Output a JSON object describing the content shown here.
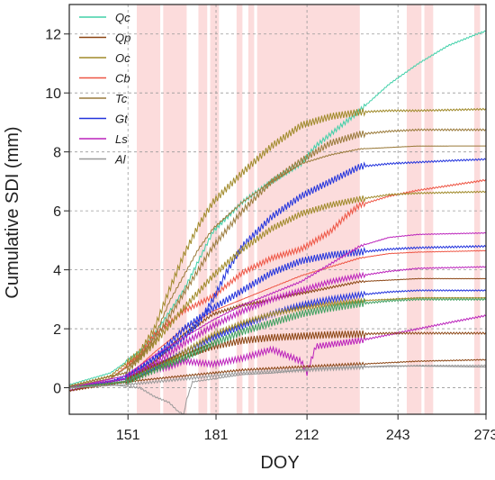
{
  "chart_data": {
    "type": "line",
    "xlabel": "DOY",
    "ylabel": "Cumulative SDI (mm)",
    "xlim": [
      131,
      273
    ],
    "ylim": [
      -0.9,
      13
    ],
    "xticks": [
      151,
      181,
      212,
      243,
      273
    ],
    "yticks": [
      0,
      2,
      4,
      6,
      8,
      10,
      12
    ],
    "grid": "dashed, on both axes",
    "legend_position": "top-left",
    "shaded_periods": [
      [
        154,
        162
      ],
      [
        163,
        171
      ],
      [
        175,
        178
      ],
      [
        179,
        182
      ],
      [
        188,
        190
      ],
      [
        192,
        194
      ],
      [
        195,
        230
      ],
      [
        246,
        251
      ],
      [
        252,
        255
      ],
      [
        269,
        271
      ]
    ],
    "series": [
      {
        "name": "Qc",
        "color": "#40d0a8",
        "x": [
          131,
          145,
          155,
          160,
          170,
          180,
          190,
          200,
          210,
          215,
          220,
          225,
          230,
          240,
          250,
          260,
          270,
          273
        ],
        "y": [
          0.1,
          0.5,
          1.2,
          1.8,
          3.3,
          5.3,
          6.3,
          7.0,
          7.6,
          8.2,
          8.6,
          9.0,
          9.4,
          10.3,
          11.0,
          11.6,
          12.0,
          12.1
        ]
      },
      {
        "name": "Qp",
        "color": "#8b4513",
        "x": [
          131,
          150,
          160,
          170,
          180,
          190,
          200,
          210,
          215,
          225,
          230,
          240,
          250,
          273
        ],
        "y": [
          -0.1,
          0.3,
          0.9,
          1.8,
          2.5,
          2.8,
          3.0,
          3.2,
          3.3,
          3.5,
          3.6,
          3.65,
          3.7,
          3.7
        ]
      },
      {
        "name": "Oc",
        "color": "#a08a2a",
        "x": [
          131,
          145,
          155,
          160,
          165,
          170,
          175,
          180,
          190,
          200,
          210,
          220,
          230,
          240,
          250,
          273
        ],
        "y": [
          0.05,
          0.4,
          1.2,
          2.0,
          3.3,
          4.5,
          5.5,
          6.3,
          7.3,
          8.2,
          8.9,
          9.2,
          9.35,
          9.4,
          9.4,
          9.45
        ]
      },
      {
        "name": "Cb",
        "color": "#ee5544",
        "x": [
          131,
          145,
          155,
          160,
          170,
          180,
          190,
          200,
          210,
          215,
          220,
          225,
          230,
          240,
          250,
          260,
          270,
          273
        ],
        "y": [
          0.0,
          0.3,
          1.1,
          1.8,
          2.6,
          3.1,
          3.9,
          4.4,
          4.7,
          5.0,
          5.3,
          5.8,
          6.2,
          6.5,
          6.7,
          6.85,
          7.0,
          7.05
        ]
      },
      {
        "name": "Tc",
        "color": "#9a7a3a",
        "x": [
          131,
          145,
          155,
          160,
          165,
          170,
          175,
          180,
          190,
          200,
          210,
          220,
          230,
          240,
          250,
          273
        ],
        "y": [
          0.05,
          0.3,
          1.0,
          1.7,
          2.9,
          3.8,
          4.7,
          5.4,
          6.3,
          7.0,
          7.6,
          7.9,
          8.1,
          8.15,
          8.2,
          8.2
        ]
      },
      {
        "name": "Gt",
        "color": "#2233dd",
        "x": [
          131,
          145,
          155,
          160,
          165,
          170,
          175,
          180,
          185,
          190,
          200,
          210,
          220,
          230,
          240,
          250,
          260,
          273
        ],
        "y": [
          0.0,
          0.2,
          0.6,
          1.0,
          1.3,
          1.7,
          2.2,
          3.0,
          4.0,
          4.8,
          5.8,
          6.5,
          7.0,
          7.5,
          7.6,
          7.65,
          7.7,
          7.75
        ]
      },
      {
        "name": "Ls",
        "color": "#bb22bb",
        "x": [
          131,
          145,
          155,
          160,
          165,
          170,
          180,
          190,
          200,
          210,
          212,
          215,
          230,
          240,
          250,
          260,
          273
        ],
        "y": [
          -0.1,
          0.2,
          0.4,
          0.6,
          0.7,
          0.9,
          0.8,
          1.0,
          1.3,
          0.9,
          0.5,
          1.4,
          1.6,
          1.8,
          2.0,
          2.2,
          2.45
        ]
      },
      {
        "name": "Al",
        "color": "#999999",
        "x": [
          131,
          145,
          155,
          160,
          165,
          168,
          170,
          171,
          173,
          180,
          190,
          200,
          210,
          212,
          215,
          230,
          240,
          273
        ],
        "y": [
          0.0,
          0.1,
          0.0,
          -0.3,
          -0.5,
          -0.8,
          -0.9,
          -0.4,
          0.2,
          0.3,
          0.45,
          0.5,
          0.6,
          0.6,
          0.65,
          0.7,
          0.75,
          0.7
        ]
      },
      {
        "name": "",
        "color": "#a08a2a",
        "x": [
          131,
          150,
          160,
          170,
          180,
          190,
          200,
          210,
          220,
          230,
          240,
          250,
          273
        ],
        "y": [
          0.05,
          0.5,
          1.5,
          2.7,
          3.8,
          4.7,
          5.4,
          5.9,
          6.2,
          6.4,
          6.55,
          6.6,
          6.65
        ]
      },
      {
        "name": "",
        "color": "#9a7a3a",
        "x": [
          131,
          150,
          160,
          170,
          180,
          190,
          200,
          210,
          220,
          230,
          240,
          250,
          273
        ],
        "y": [
          0.05,
          0.5,
          1.6,
          3.2,
          4.8,
          6.0,
          7.0,
          7.7,
          8.3,
          8.6,
          8.7,
          8.75,
          8.75
        ]
      },
      {
        "name": "",
        "color": "#ee5544",
        "x": [
          131,
          150,
          160,
          170,
          180,
          190,
          200,
          210,
          220,
          230,
          240,
          250,
          273
        ],
        "y": [
          0.0,
          0.3,
          1.2,
          2.0,
          2.6,
          3.0,
          3.4,
          3.8,
          4.1,
          4.4,
          4.55,
          4.6,
          4.65
        ]
      },
      {
        "name": "",
        "color": "#2233dd",
        "x": [
          131,
          150,
          160,
          170,
          180,
          190,
          200,
          210,
          220,
          230,
          240,
          250,
          273
        ],
        "y": [
          0.0,
          0.2,
          0.7,
          1.2,
          1.7,
          2.1,
          2.5,
          2.8,
          3.0,
          3.15,
          3.25,
          3.3,
          3.3
        ]
      },
      {
        "name": "",
        "color": "#2233dd",
        "x": [
          131,
          150,
          160,
          170,
          180,
          190,
          200,
          210,
          220,
          230,
          240,
          250,
          273
        ],
        "y": [
          0.0,
          0.3,
          1.0,
          2.0,
          2.7,
          3.3,
          3.9,
          4.3,
          4.5,
          4.6,
          4.7,
          4.75,
          4.8
        ]
      },
      {
        "name": "",
        "color": "#bb22bb",
        "x": [
          131,
          150,
          160,
          170,
          180,
          190,
          200,
          210,
          220,
          230,
          240,
          250,
          273
        ],
        "y": [
          0.0,
          0.4,
          1.1,
          1.7,
          2.3,
          2.8,
          3.2,
          3.6,
          4.2,
          4.8,
          5.1,
          5.2,
          5.25
        ]
      },
      {
        "name": "",
        "color": "#bb22bb",
        "x": [
          131,
          150,
          160,
          170,
          180,
          190,
          200,
          210,
          220,
          230,
          240,
          250,
          273
        ],
        "y": [
          0.0,
          0.3,
          0.8,
          1.5,
          2.1,
          2.6,
          3.0,
          3.3,
          3.6,
          3.8,
          3.95,
          4.05,
          4.1
        ]
      },
      {
        "name": "",
        "color": "#8b4513",
        "x": [
          131,
          150,
          160,
          170,
          180,
          190,
          200,
          210,
          220,
          230,
          240,
          250,
          273
        ],
        "y": [
          -0.1,
          0.2,
          0.7,
          1.1,
          1.4,
          1.6,
          1.7,
          1.75,
          1.8,
          1.82,
          1.85,
          1.85,
          1.85
        ]
      },
      {
        "name": "",
        "color": "#8b4513",
        "x": [
          131,
          150,
          160,
          170,
          180,
          190,
          200,
          210,
          220,
          230,
          240,
          250,
          273
        ],
        "y": [
          0.0,
          0.2,
          0.3,
          0.4,
          0.5,
          0.6,
          0.65,
          0.7,
          0.75,
          0.8,
          0.85,
          0.9,
          0.95
        ]
      },
      {
        "name": "",
        "color": "#a08a2a",
        "x": [
          131,
          150,
          160,
          170,
          180,
          190,
          200,
          210,
          220,
          230,
          240,
          250,
          273
        ],
        "y": [
          0.0,
          0.2,
          0.6,
          1.2,
          1.8,
          2.2,
          2.5,
          2.7,
          2.85,
          2.95,
          3.0,
          3.05,
          3.05
        ]
      },
      {
        "name": "",
        "color": "#40a060",
        "x": [
          131,
          150,
          160,
          170,
          180,
          190,
          200,
          210,
          220,
          230,
          240,
          250,
          273
        ],
        "y": [
          0.0,
          0.2,
          0.6,
          1.0,
          1.5,
          1.9,
          2.2,
          2.5,
          2.7,
          2.85,
          2.95,
          3.0,
          3.0
        ]
      },
      {
        "name": "",
        "color": "#999999",
        "x": [
          131,
          150,
          160,
          170,
          180,
          190,
          200,
          210,
          220,
          230,
          240,
          250,
          273
        ],
        "y": [
          0.0,
          0.1,
          0.2,
          0.3,
          0.4,
          0.5,
          0.55,
          0.6,
          0.65,
          0.7,
          0.72,
          0.75,
          0.75
        ]
      }
    ]
  }
}
